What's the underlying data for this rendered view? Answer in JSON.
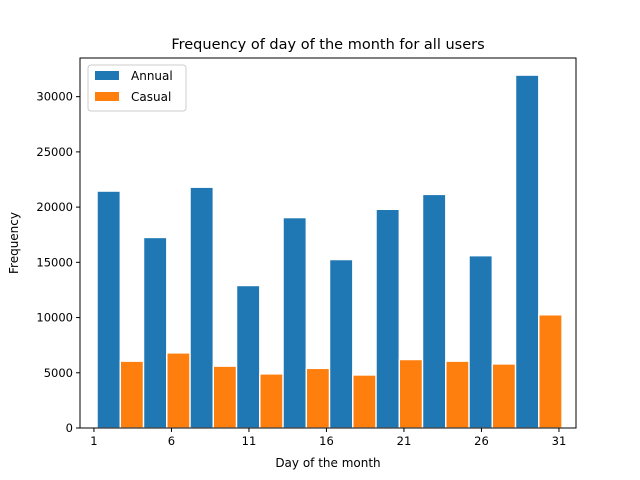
{
  "chart_data": {
    "type": "bar",
    "title": "Frequency of day of the month for all users",
    "xlabel": "Day of the month",
    "ylabel": "Frequency",
    "xlim": [
      0.1,
      32.1
    ],
    "ylim": [
      0,
      33500
    ],
    "xticks": [
      1,
      6,
      11,
      16,
      21,
      26,
      31
    ],
    "yticks": [
      0,
      5000,
      10000,
      15000,
      20000,
      25000,
      30000
    ],
    "grid": false,
    "legend_position": "top-left",
    "bins": [
      [
        1.2,
        4.2
      ],
      [
        4.2,
        7.2
      ],
      [
        7.2,
        10.2
      ],
      [
        10.2,
        13.2
      ],
      [
        13.2,
        16.2
      ],
      [
        16.2,
        19.2
      ],
      [
        19.2,
        22.2
      ],
      [
        22.2,
        25.2
      ],
      [
        25.2,
        28.2
      ],
      [
        28.2,
        31.2
      ]
    ],
    "series": [
      {
        "name": "Annual",
        "color": "#1f77b4",
        "values": [
          21450,
          17250,
          21800,
          12900,
          19050,
          15250,
          19800,
          21150,
          15600,
          31950
        ]
      },
      {
        "name": "Casual",
        "color": "#ff7f0e",
        "values": [
          6050,
          6800,
          5600,
          4900,
          5400,
          4800,
          6200,
          6050,
          5800,
          10250
        ]
      }
    ]
  }
}
